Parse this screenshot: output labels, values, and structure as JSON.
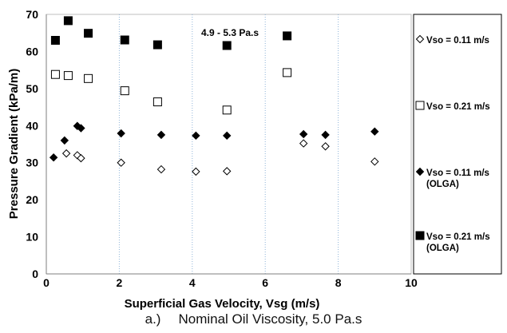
{
  "caption": {
    "label": "a.)",
    "text": "Nominal Oil Viscosity, 5.0 Pa.s"
  },
  "chart_data": {
    "type": "scatter",
    "title": "",
    "xlabel": "Superficial Gas Velocity, Vsg (m/s)",
    "ylabel": "Pressure Gradient (kPa/m)",
    "xlim": [
      0,
      10
    ],
    "ylim": [
      0,
      70
    ],
    "xticks": [
      0,
      2,
      4,
      6,
      8,
      10
    ],
    "yticks": [
      0,
      10,
      20,
      30,
      40,
      50,
      60,
      70
    ],
    "vertical_gridlines": true,
    "annotation": "4.9 - 5.3 Pa.s",
    "legend_position": "right",
    "series": [
      {
        "name": "Vso = 0.11 m/s",
        "marker": "diamond-open",
        "color": "#000000",
        "x": [
          0.55,
          0.85,
          0.95,
          2.05,
          3.15,
          4.1,
          4.95,
          7.05,
          7.65,
          9.0
        ],
        "y": [
          32.5,
          32.0,
          31.2,
          30.0,
          28.2,
          27.6,
          27.7,
          35.2,
          34.4,
          30.3
        ]
      },
      {
        "name": "Vso = 0.21 m/s",
        "marker": "square-open",
        "color": "#000000",
        "x": [
          0.25,
          0.6,
          1.15,
          2.15,
          3.05,
          4.95,
          6.6
        ],
        "y": [
          53.8,
          53.5,
          52.7,
          49.4,
          46.4,
          44.2,
          54.3
        ]
      },
      {
        "name": "Vso = 0.11 m/s (OLGA)",
        "marker": "diamond-filled",
        "color": "#000000",
        "x": [
          0.2,
          0.5,
          0.85,
          0.95,
          2.05,
          3.15,
          4.1,
          4.95,
          7.05,
          7.65,
          9.0
        ],
        "y": [
          31.4,
          36.0,
          39.9,
          39.3,
          37.9,
          37.5,
          37.3,
          37.3,
          37.7,
          37.5,
          38.4
        ]
      },
      {
        "name": "Vso = 0.21 m/s (OLGA)",
        "marker": "square-filled",
        "color": "#000000",
        "x": [
          0.25,
          0.6,
          1.15,
          2.15,
          3.05,
          4.95,
          6.6
        ],
        "y": [
          63.0,
          68.3,
          64.9,
          63.1,
          61.8,
          61.6,
          64.2
        ]
      }
    ]
  }
}
